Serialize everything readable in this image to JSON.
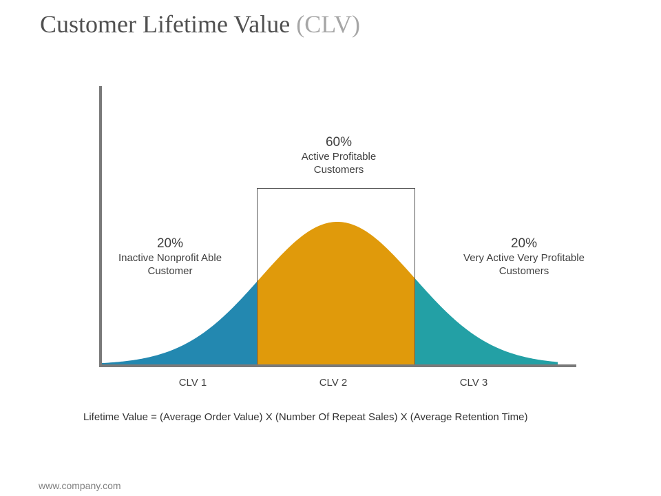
{
  "title": {
    "main": "Customer Lifetime Value",
    "sub": "(CLV)"
  },
  "segments": [
    {
      "id": "clv1",
      "percent": "20%",
      "line1": "Inactive Nonprofit Able",
      "line2": "Customer",
      "axis_label": "CLV 1",
      "color": "#2388B0"
    },
    {
      "id": "clv2",
      "percent": "60%",
      "line1": "Active Profitable",
      "line2": "Customers",
      "axis_label": "CLV 2",
      "color": "#E09A0B"
    },
    {
      "id": "clv3",
      "percent": "20%",
      "line1": "Very Active Very Profitable",
      "line2": "Customers",
      "axis_label": "CLV 3",
      "color": "#23A0A5"
    }
  ],
  "formula": "Lifetime Value = (Average Order Value) X (Number Of Repeat Sales) X (Average Retention Time)",
  "footer": "www.company.com",
  "colors": {
    "axis": "#7a7a7a",
    "box": "#555555"
  }
}
